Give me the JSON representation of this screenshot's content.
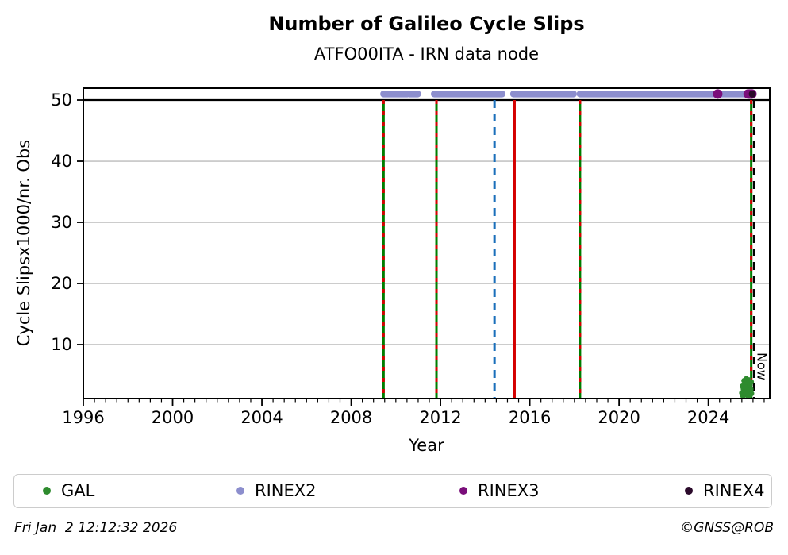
{
  "header": {
    "title": "Number of Galileo Cycle Slips",
    "subtitle": "ATFO00ITA - IRN data node"
  },
  "chart_data": {
    "type": "scatter",
    "title": "Number of Galileo Cycle Slips",
    "subtitle": "ATFO00ITA - IRN data node",
    "xlabel": "Year",
    "ylabel": "Cycle Slipsx1000/nr. Obs",
    "xlim": [
      1996,
      2026.75
    ],
    "ylim": [
      1.17,
      51.95
    ],
    "x_ticks": [
      1996,
      2000,
      2004,
      2008,
      2012,
      2016,
      2020,
      2024
    ],
    "x_minor_step": 0.5,
    "y_ticks": [
      10,
      20,
      30,
      40,
      50
    ],
    "grid": "horizontal-only",
    "grid_color": "#bbbbbb",
    "threshold_line": {
      "value": 50,
      "color": "#000000"
    },
    "now_label": "Now",
    "series": [
      {
        "name": "GAL",
        "draw": "points",
        "color": "#2e8b2e",
        "size": 3.5,
        "points": [
          [
            2025.5,
            2.1
          ],
          [
            2025.53,
            3.2
          ],
          [
            2025.55,
            1.6
          ],
          [
            2025.57,
            2.8
          ],
          [
            2025.6,
            4.1
          ],
          [
            2025.62,
            2.3
          ],
          [
            2025.64,
            3.6
          ],
          [
            2025.66,
            1.9
          ],
          [
            2025.68,
            2.6
          ],
          [
            2025.7,
            4.4
          ],
          [
            2025.72,
            3.0
          ],
          [
            2025.74,
            2.2
          ],
          [
            2025.76,
            3.8
          ],
          [
            2025.78,
            1.5
          ],
          [
            2025.8,
            2.9
          ],
          [
            2025.82,
            4.2
          ],
          [
            2025.84,
            2.5
          ],
          [
            2025.86,
            3.4
          ],
          [
            2025.88,
            1.8
          ],
          [
            2025.9,
            2.7
          ],
          [
            2025.92,
            3.9
          ],
          [
            2025.93,
            2.0
          ]
        ]
      },
      {
        "name": "RINEX2",
        "draw": "segments",
        "color": "#8c8ecd",
        "value": 51,
        "thickness": 8.5,
        "segments": [
          [
            2009.45,
            2010.52
          ],
          [
            2010.62,
            2010.98
          ],
          [
            2011.72,
            2014.76
          ],
          [
            2015.27,
            2017.96
          ],
          [
            2018.25,
            2025.95
          ]
        ]
      },
      {
        "name": "RINEX3",
        "draw": "points",
        "color": "#7a0e7a",
        "size": 6,
        "points": [
          [
            2024.42,
            51
          ],
          [
            2025.78,
            51
          ],
          [
            2025.84,
            51
          ],
          [
            2025.9,
            51
          ],
          [
            2025.95,
            51
          ]
        ]
      },
      {
        "name": "RINEX4",
        "draw": "points",
        "color": "#2b0a2b",
        "size": 4.5,
        "points": [
          [
            2025.97,
            51
          ]
        ]
      }
    ],
    "event_lines": [
      {
        "year": 2009.45,
        "color": "#007d00",
        "style": "solid",
        "overlay_color": "#d40000",
        "overlay_dash": "5 9"
      },
      {
        "year": 2011.82,
        "color": "#007d00",
        "style": "solid",
        "overlay_color": "#d40000",
        "overlay_dash": "5 9"
      },
      {
        "year": 2014.42,
        "color": "#1a6fba",
        "style": "dash"
      },
      {
        "year": 2015.32,
        "color": "#d40000",
        "style": "solid"
      },
      {
        "year": 2018.25,
        "color": "#007d00",
        "style": "solid",
        "overlay_color": "#d40000",
        "overlay_dash": "5 9"
      },
      {
        "year": 2025.92,
        "color": "#007d00",
        "style": "solid",
        "overlay_color": "#d40000",
        "overlay_dash": "5 9"
      },
      {
        "year": 2026.05,
        "color": "#000000",
        "style": "dash",
        "label": "Now"
      }
    ]
  },
  "legend": {
    "items": [
      {
        "label": "GAL",
        "color": "#2e8b2e"
      },
      {
        "label": "RINEX2",
        "color": "#8c8ecd"
      },
      {
        "label": "RINEX3",
        "color": "#7a0e7a"
      },
      {
        "label": "RINEX4",
        "color": "#2b0a2b"
      }
    ]
  },
  "footer": {
    "timestamp": "Fri Jan  2 12:12:32 2026",
    "credit": "©GNSS@ROB"
  }
}
